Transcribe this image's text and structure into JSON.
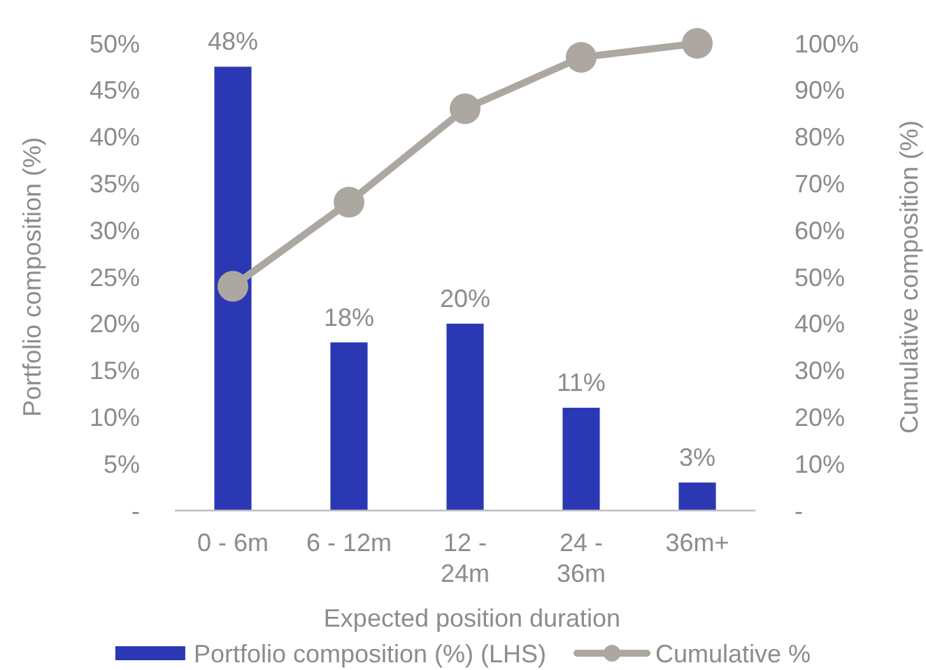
{
  "chart_data": {
    "type": "bar",
    "xlabel": "Expected position duration",
    "ylabel": "Portfolio composition (%)",
    "y2label": "Cumulative composition (%)",
    "categories": [
      "0 - 6m",
      "6 - 12m",
      "12 - 24m",
      "24 - 36m",
      "36m+"
    ],
    "series": [
      {
        "name": "Portfolio composition (%) (LHS)",
        "color": "#2b38b4",
        "values": [
          47.5,
          18,
          20,
          11,
          3
        ],
        "value_labels": [
          "48%",
          "18%",
          "20%",
          "11%",
          "3%"
        ]
      },
      {
        "name": "Cumulative %",
        "type": "line",
        "axis": "y2",
        "color": "#aca8a1",
        "marker": "circle",
        "values": [
          48,
          66,
          86,
          97,
          100
        ]
      }
    ],
    "ylim": [
      0,
      50
    ],
    "yticks": [
      {
        "value": 0,
        "label": "-"
      },
      {
        "value": 5,
        "label": "5%"
      },
      {
        "value": 10,
        "label": "10%"
      },
      {
        "value": 15,
        "label": "15%"
      },
      {
        "value": 20,
        "label": "20%"
      },
      {
        "value": 25,
        "label": "25%"
      },
      {
        "value": 30,
        "label": "30%"
      },
      {
        "value": 35,
        "label": "35%"
      },
      {
        "value": 40,
        "label": "40%"
      },
      {
        "value": 45,
        "label": "45%"
      },
      {
        "value": 50,
        "label": "50%"
      }
    ],
    "y2lim": [
      0,
      100
    ],
    "y2ticks": [
      {
        "value": 0,
        "label": "-"
      },
      {
        "value": 10,
        "label": "10%"
      },
      {
        "value": 20,
        "label": "20%"
      },
      {
        "value": 30,
        "label": "30%"
      },
      {
        "value": 40,
        "label": "40%"
      },
      {
        "value": 50,
        "label": "50%"
      },
      {
        "value": 60,
        "label": "60%"
      },
      {
        "value": 70,
        "label": "70%"
      },
      {
        "value": 80,
        "label": "80%"
      },
      {
        "value": 90,
        "label": "90%"
      },
      {
        "value": 100,
        "label": "100%"
      }
    ],
    "grid": false,
    "legend": "bottom"
  }
}
